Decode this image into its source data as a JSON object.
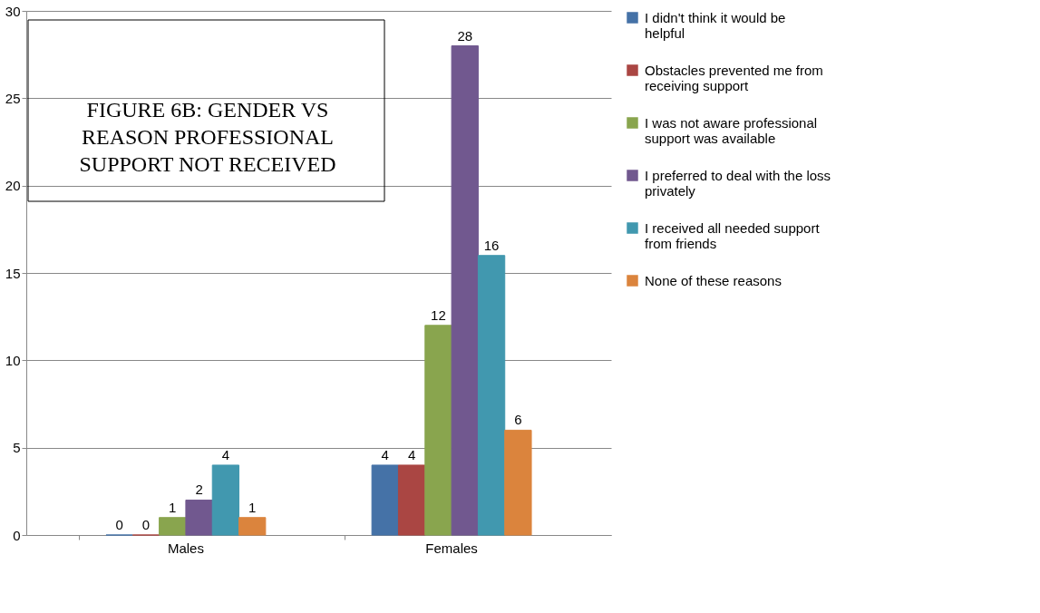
{
  "chart_data": {
    "type": "bar",
    "title": "FIGURE 6B: GENDER VS REASON PROFESSIONAL SUPPORT NOT RECEIVED",
    "categories": [
      "Males",
      "Females"
    ],
    "series": [
      {
        "name": "I didn't think it would be helpful",
        "color": "#4572a7",
        "values": [
          0,
          4
        ]
      },
      {
        "name": "Obstacles prevented me from receiving support",
        "color": "#aa4643",
        "values": [
          0,
          4
        ]
      },
      {
        "name": "I was not aware professional support was available",
        "color": "#89a54e",
        "values": [
          1,
          12
        ]
      },
      {
        "name": "I preferred to deal with the loss privately",
        "color": "#71588f",
        "values": [
          2,
          28
        ]
      },
      {
        "name": "I received all needed support from friends",
        "color": "#4198af",
        "values": [
          4,
          16
        ]
      },
      {
        "name": "None of these reasons",
        "color": "#db843d",
        "values": [
          1,
          6
        ]
      }
    ],
    "ylim": [
      0,
      30
    ],
    "yticks": [
      0,
      5,
      10,
      15,
      20,
      25,
      30
    ],
    "grid": "y",
    "legend": "right",
    "data_labels": true
  }
}
